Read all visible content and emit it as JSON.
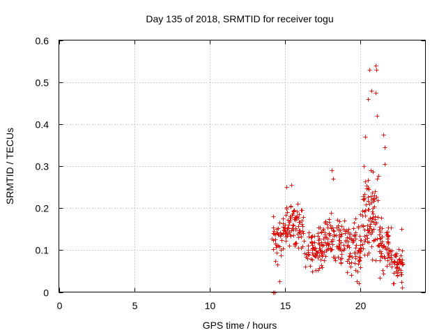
{
  "chart_data": {
    "type": "scatter",
    "title": "Day 135 of 2018, SRMTID for receiver togu",
    "xlabel": "GPS time / hours",
    "ylabel": "SRMTID / TECUs",
    "xlim": [
      0,
      24.3
    ],
    "ylim": [
      0,
      0.6
    ],
    "xticks": [
      0,
      5,
      10,
      15,
      20
    ],
    "xtick_labels": [
      "0",
      "5",
      "10",
      "15",
      "20"
    ],
    "yticks": [
      0,
      0.1,
      0.2,
      0.3,
      0.4,
      0.5,
      0.6
    ],
    "ytick_labels": [
      "0",
      "0.1",
      "0.2",
      "0.3",
      "0.4",
      "0.5",
      "0.6"
    ],
    "grid": true,
    "marker": "plus",
    "color": "#e0120f",
    "x_range_of_data": [
      14.1,
      22.8
    ],
    "anchor_points": [
      {
        "x": 14.2,
        "y": 0.0
      },
      {
        "x": 14.3,
        "y": 0.0
      },
      {
        "x": 14.5,
        "y": 0.065
      },
      {
        "x": 14.6,
        "y": 0.025
      },
      {
        "x": 15.1,
        "y": 0.25
      },
      {
        "x": 15.4,
        "y": 0.255
      },
      {
        "x": 18.1,
        "y": 0.29
      },
      {
        "x": 18.2,
        "y": 0.27
      },
      {
        "x": 19.4,
        "y": 0.04
      },
      {
        "x": 19.9,
        "y": 0.02
      },
      {
        "x": 20.2,
        "y": 0.3
      },
      {
        "x": 20.3,
        "y": 0.37
      },
      {
        "x": 20.5,
        "y": 0.46
      },
      {
        "x": 20.6,
        "y": 0.53
      },
      {
        "x": 20.7,
        "y": 0.48
      },
      {
        "x": 21.0,
        "y": 0.54
      },
      {
        "x": 21.05,
        "y": 0.53
      },
      {
        "x": 21.0,
        "y": 0.475
      },
      {
        "x": 21.1,
        "y": 0.42
      },
      {
        "x": 21.5,
        "y": 0.375
      },
      {
        "x": 21.6,
        "y": 0.345
      },
      {
        "x": 21.6,
        "y": 0.305
      },
      {
        "x": 22.2,
        "y": 0.02
      },
      {
        "x": 22.7,
        "y": 0.15
      },
      {
        "x": 22.75,
        "y": 0.01
      }
    ],
    "envelopes": [
      {
        "from": 14.1,
        "to": 15.0,
        "low": 0.06,
        "high": 0.2,
        "count": 40
      },
      {
        "from": 15.0,
        "to": 16.2,
        "low": 0.08,
        "high": 0.24,
        "count": 80
      },
      {
        "from": 16.2,
        "to": 17.5,
        "low": 0.03,
        "high": 0.18,
        "count": 80
      },
      {
        "from": 17.5,
        "to": 19.0,
        "low": 0.04,
        "high": 0.2,
        "count": 90
      },
      {
        "from": 19.0,
        "to": 20.1,
        "low": 0.02,
        "high": 0.2,
        "count": 70
      },
      {
        "from": 20.1,
        "to": 21.2,
        "low": 0.05,
        "high": 0.32,
        "count": 90
      },
      {
        "from": 21.2,
        "to": 22.0,
        "low": 0.02,
        "high": 0.2,
        "count": 60
      },
      {
        "from": 22.0,
        "to": 22.8,
        "low": 0.01,
        "high": 0.13,
        "count": 50
      }
    ]
  }
}
